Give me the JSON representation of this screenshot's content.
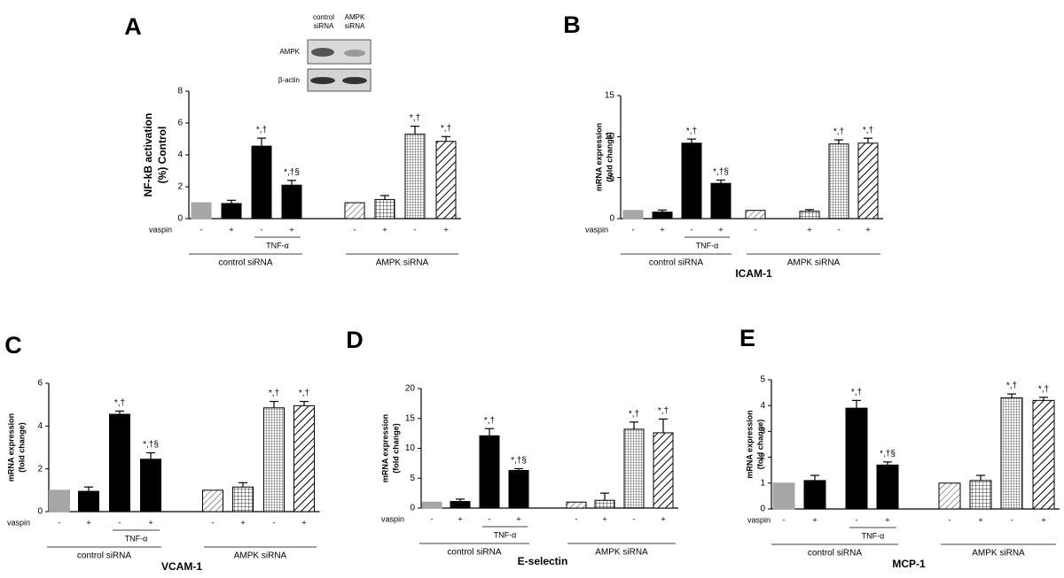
{
  "chart_data": [
    {
      "type": "bar",
      "panel": "A",
      "ylabel": [
        "NF-kB activation",
        "(%) Control"
      ],
      "blot": {
        "lanes": [
          [
            "control",
            "siRNA"
          ],
          [
            "AMPK",
            "siRNA"
          ]
        ],
        "rows": [
          "AMPK",
          "β-actin"
        ]
      },
      "x_label": "vaspin",
      "categories": [
        "-",
        "+",
        "-",
        "+",
        "-",
        "+",
        "-",
        "+"
      ],
      "treatment": "TNF-α",
      "groups": [
        "control siRNA",
        "AMPK siRNA"
      ],
      "values": [
        1.0,
        0.95,
        4.55,
        2.1,
        1.0,
        1.2,
        5.3,
        4.85
      ],
      "errors": [
        null,
        0.2,
        0.5,
        0.3,
        null,
        0.25,
        0.5,
        0.3
      ],
      "annotations": [
        null,
        null,
        "*,†",
        "*,†§",
        null,
        null,
        "*,†",
        "*,†"
      ],
      "colors": [
        "#a6a6a6",
        "#000000",
        "#000000",
        "#000000",
        "#000000",
        "#000000",
        "#000000",
        "#000000"
      ],
      "patterns": [
        "solid",
        "solid",
        "solid",
        "solid",
        "hatch-light",
        "grid",
        "crosshatch",
        "hatch-bold"
      ],
      "ylim": [
        0,
        8
      ],
      "yticks": [
        0,
        2,
        4,
        6,
        8
      ]
    },
    {
      "type": "bar",
      "panel": "B",
      "title": "ICAM-1",
      "ylabel": [
        "mRNA expression",
        "(fold change)"
      ],
      "x_label": "vaspin",
      "categories": [
        "-",
        "+",
        "-",
        "+",
        "-",
        "+",
        "-",
        "+"
      ],
      "treatment": "TNF-α",
      "groups": [
        "control siRNA",
        "AMPK siRNA"
      ],
      "values": [
        1.0,
        0.8,
        9.2,
        4.3,
        1.0,
        0.9,
        9.1,
        9.2
      ],
      "errors": [
        null,
        0.25,
        0.5,
        0.4,
        null,
        0.2,
        0.5,
        0.6
      ],
      "annotations": [
        null,
        null,
        "*,†",
        "*,†§",
        null,
        null,
        "*,†",
        "*,†"
      ],
      "colors": [
        "#a6a6a6",
        "#000000",
        "#000000",
        "#000000",
        "#000000",
        "#000000",
        "#000000",
        "#000000"
      ],
      "patterns": [
        "solid",
        "solid",
        "solid",
        "solid",
        "hatch-light",
        "grid",
        "crosshatch",
        "hatch-bold"
      ],
      "ylim": [
        0,
        15
      ],
      "yticks": [
        0,
        5,
        10,
        15
      ]
    },
    {
      "type": "bar",
      "panel": "C",
      "title": "VCAM-1",
      "ylabel": [
        "mRNA expression",
        "(fold change)"
      ],
      "x_label": "vaspin",
      "categories": [
        "-",
        "+",
        "-",
        "+",
        "-",
        "+",
        "-",
        "+"
      ],
      "treatment": "TNF-α",
      "groups": [
        "control siRNA",
        "AMPK siRNA"
      ],
      "values": [
        1.0,
        0.95,
        4.55,
        2.45,
        1.0,
        1.15,
        4.85,
        4.95
      ],
      "errors": [
        null,
        0.2,
        0.15,
        0.3,
        null,
        0.2,
        0.3,
        0.2
      ],
      "annotations": [
        null,
        null,
        "*,†",
        "*,†§",
        null,
        null,
        "*,†",
        "*,†"
      ],
      "colors": [
        "#a6a6a6",
        "#000000",
        "#000000",
        "#000000",
        "#000000",
        "#000000",
        "#000000",
        "#000000"
      ],
      "patterns": [
        "solid",
        "solid",
        "solid",
        "solid",
        "hatch-light",
        "grid",
        "crosshatch",
        "hatch-bold"
      ],
      "ylim": [
        0,
        6
      ],
      "yticks": [
        0,
        2,
        4,
        6
      ]
    },
    {
      "type": "bar",
      "panel": "D",
      "title": "E-selectin",
      "ylabel": [
        "mRNA expression",
        "(fold change)"
      ],
      "x_label": "vaspin",
      "categories": [
        "-",
        "+",
        "-",
        "+",
        "-",
        "+",
        "-",
        "+"
      ],
      "treatment": "TNF-α",
      "groups": [
        "control siRNA",
        "AMPK siRNA"
      ],
      "values": [
        1.0,
        1.1,
        12.1,
        6.3,
        1.0,
        1.3,
        13.2,
        12.6
      ],
      "errors": [
        null,
        0.4,
        1.2,
        0.3,
        null,
        1.2,
        1.2,
        2.3
      ],
      "annotations": [
        null,
        null,
        "*,†",
        "*,†§",
        null,
        null,
        "*,†",
        "*,†"
      ],
      "colors": [
        "#a6a6a6",
        "#000000",
        "#000000",
        "#000000",
        "#000000",
        "#000000",
        "#000000",
        "#000000"
      ],
      "patterns": [
        "solid",
        "solid",
        "solid",
        "solid",
        "hatch-light",
        "grid",
        "crosshatch",
        "hatch-bold"
      ],
      "ylim": [
        0,
        20
      ],
      "yticks": [
        0,
        5,
        10,
        15,
        20
      ]
    },
    {
      "type": "bar",
      "panel": "E",
      "title": "MCP-1",
      "ylabel": [
        "mRNA expression",
        "(fold change)"
      ],
      "x_label": "vaspin",
      "categories": [
        "-",
        "+",
        "-",
        "+",
        "-",
        "+",
        "-",
        "+"
      ],
      "treatment": "TNF-α",
      "groups": [
        "control siRNA",
        "AMPK siRNA"
      ],
      "values": [
        1.0,
        1.1,
        3.9,
        1.7,
        1.0,
        1.1,
        4.3,
        4.2
      ],
      "errors": [
        null,
        0.2,
        0.3,
        0.12,
        null,
        0.2,
        0.15,
        0.12
      ],
      "annotations": [
        null,
        null,
        "*,†",
        "*,†§",
        null,
        null,
        "*,†",
        "*,†"
      ],
      "colors": [
        "#a6a6a6",
        "#000000",
        "#000000",
        "#000000",
        "#000000",
        "#000000",
        "#000000",
        "#000000"
      ],
      "patterns": [
        "solid",
        "solid",
        "solid",
        "solid",
        "hatch-light",
        "grid",
        "crosshatch",
        "hatch-bold"
      ],
      "ylim": [
        0,
        5
      ],
      "yticks": [
        0,
        1,
        2,
        3,
        4,
        5
      ]
    }
  ]
}
